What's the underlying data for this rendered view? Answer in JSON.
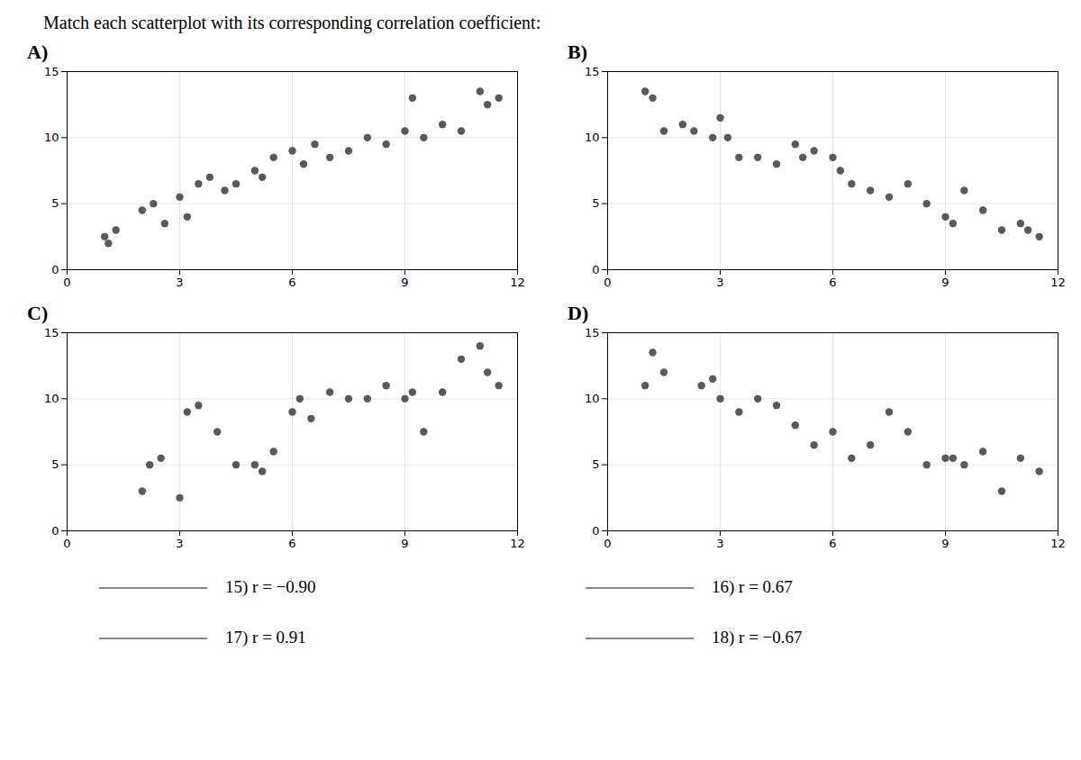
{
  "title": "Match each scatterplot with its corresponding correlation coefficient:",
  "annotations": [
    "15) r = −0.90",
    "16) r = 0.67",
    "17) r = 0.91",
    "18) r = −0.67"
  ],
  "chart_data": [
    {
      "type": "scatter",
      "title": "A)",
      "color": "#595959",
      "grid": true,
      "xlim": [
        0,
        12
      ],
      "ylim": [
        0,
        15
      ],
      "xticks": [
        0,
        3,
        6,
        9,
        12
      ],
      "yticks": [
        0,
        5,
        10,
        15
      ],
      "x": [
        1.0,
        1.1,
        1.3,
        2.0,
        2.3,
        2.6,
        3.0,
        3.2,
        3.5,
        3.8,
        4.2,
        4.5,
        5.0,
        5.2,
        5.5,
        6.0,
        6.3,
        6.6,
        7.0,
        7.5,
        8.0,
        8.5,
        9.0,
        9.2,
        9.5,
        10.0,
        10.5,
        11.0,
        11.2,
        11.5
      ],
      "values": [
        2.5,
        2.0,
        3.0,
        4.5,
        5.0,
        3.5,
        5.5,
        4.0,
        6.5,
        7.0,
        6.0,
        6.5,
        7.5,
        7.0,
        8.5,
        9.0,
        8.0,
        9.5,
        8.5,
        9.0,
        10.0,
        9.5,
        10.5,
        13.0,
        10.0,
        11.0,
        10.5,
        13.5,
        12.5,
        13.0
      ]
    },
    {
      "type": "scatter",
      "title": "B)",
      "color": "#595959",
      "grid": true,
      "xlim": [
        0,
        12
      ],
      "ylim": [
        0,
        15
      ],
      "xticks": [
        0,
        3,
        6,
        9,
        12
      ],
      "yticks": [
        0,
        5,
        10,
        15
      ],
      "x": [
        1.0,
        1.2,
        1.5,
        2.0,
        2.3,
        2.8,
        3.0,
        3.2,
        3.5,
        4.0,
        4.5,
        5.0,
        5.2,
        5.5,
        6.0,
        6.2,
        6.5,
        7.0,
        7.5,
        8.0,
        8.5,
        9.0,
        9.2,
        9.5,
        10.0,
        10.5,
        11.0,
        11.2,
        11.5
      ],
      "values": [
        13.5,
        13.0,
        10.5,
        11.0,
        10.5,
        10.0,
        11.5,
        10.0,
        8.5,
        8.5,
        8.0,
        9.5,
        8.5,
        9.0,
        8.5,
        7.5,
        6.5,
        6.0,
        5.5,
        6.5,
        5.0,
        4.0,
        3.5,
        6.0,
        4.5,
        3.0,
        3.5,
        3.0,
        2.5
      ]
    },
    {
      "type": "scatter",
      "title": "C)",
      "color": "#595959",
      "grid": true,
      "xlim": [
        0,
        12
      ],
      "ylim": [
        0,
        15
      ],
      "xticks": [
        0,
        3,
        6,
        9,
        12
      ],
      "yticks": [
        0,
        5,
        10,
        15
      ],
      "x": [
        2.0,
        2.2,
        2.5,
        3.0,
        3.2,
        3.5,
        4.0,
        4.5,
        5.0,
        5.2,
        5.5,
        6.0,
        6.2,
        6.5,
        7.0,
        7.5,
        8.0,
        8.5,
        9.0,
        9.2,
        9.5,
        10.0,
        10.5,
        11.0,
        11.2,
        11.5
      ],
      "values": [
        3.0,
        5.0,
        5.5,
        2.5,
        9.0,
        9.5,
        7.5,
        5.0,
        5.0,
        4.5,
        6.0,
        9.0,
        10.0,
        8.5,
        10.5,
        10.0,
        10.0,
        11.0,
        10.0,
        10.5,
        7.5,
        10.5,
        13.0,
        14.0,
        12.0,
        11.0
      ]
    },
    {
      "type": "scatter",
      "title": "D)",
      "color": "#595959",
      "grid": true,
      "xlim": [
        0,
        12
      ],
      "ylim": [
        0,
        15
      ],
      "xticks": [
        0,
        3,
        6,
        9,
        12
      ],
      "yticks": [
        0,
        5,
        10,
        15
      ],
      "x": [
        1.0,
        1.2,
        1.5,
        2.5,
        2.8,
        3.0,
        3.5,
        4.0,
        4.5,
        5.0,
        5.5,
        6.0,
        6.5,
        7.0,
        7.5,
        8.0,
        8.5,
        9.0,
        9.2,
        9.5,
        10.0,
        10.5,
        11.0,
        11.5
      ],
      "values": [
        11.0,
        13.5,
        12.0,
        11.0,
        11.5,
        10.0,
        9.0,
        10.0,
        9.5,
        8.0,
        6.5,
        7.5,
        5.5,
        6.5,
        9.0,
        7.5,
        5.0,
        5.5,
        5.5,
        5.0,
        6.0,
        3.0,
        5.5,
        4.5
      ]
    }
  ]
}
